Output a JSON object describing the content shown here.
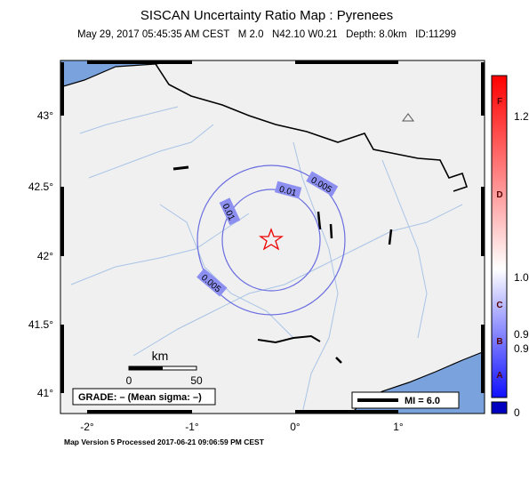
{
  "header": {
    "title": "SISCAN Uncertainty Ratio Map : Pyrenees",
    "subtitle": "May 29, 2017 05:45:35 AM CEST   M 2.0   N42.10 W0.21   Depth: 8.0km   ID:11299"
  },
  "map": {
    "lat_labels": [
      "43°",
      "42.5°",
      "42°",
      "41.5°",
      "41°"
    ],
    "lon_labels": [
      "-2°",
      "-1°",
      "0°",
      "1°"
    ],
    "contour_labels": [
      "0.01",
      "0.01",
      "0.005",
      "0.005"
    ],
    "scale": {
      "unit": "km",
      "start": "0",
      "end": "50"
    },
    "grade": "GRADE: – (Mean sigma: –)",
    "mi_legend": "MI = 6.0"
  },
  "colorbar": {
    "letters": [
      "F",
      "D",
      "C",
      "B",
      "A"
    ],
    "values": [
      "1.2",
      "1.0",
      "0.9",
      "0.9",
      "0"
    ]
  },
  "footer": "Map Version 5 Processed 2017-06-21 09:06:59 PM CEST"
}
